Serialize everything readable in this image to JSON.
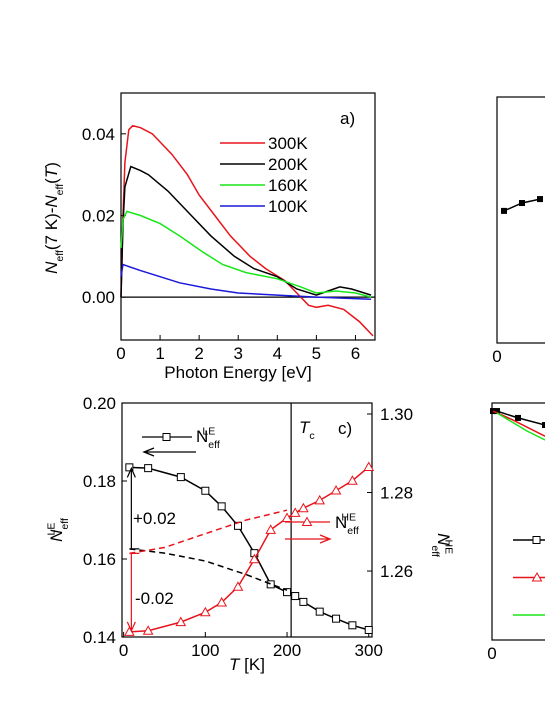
{
  "chart_data": [
    {
      "type": "line",
      "panel_label": "a)",
      "ylabel": [
        "N",
        "eff",
        "(7 K)-",
        "N",
        "eff",
        "(",
        "T",
        ")"
      ],
      "xlabel": "Photon Energy  [eV]",
      "xlim": [
        0,
        6.5
      ],
      "xticks": [
        0,
        1,
        2,
        3,
        4,
        5,
        6
      ],
      "ylim": [
        -0.0105,
        0.05
      ],
      "yticks": [
        {
          "value": 0,
          "label": "0.00"
        },
        {
          "value": 0.02,
          "label": "0.02"
        },
        {
          "value": 0.04,
          "label": "0.04"
        }
      ],
      "hline": 0,
      "series": [
        {
          "name": "300K",
          "color": "#e8141b",
          "x": [
            0,
            0.05,
            0.1,
            0.2,
            0.3,
            0.5,
            0.8,
            1.0,
            1.3,
            1.7,
            2.0,
            2.4,
            2.8,
            3.3,
            3.7,
            4.2,
            4.5,
            4.8,
            5.0,
            5.3,
            5.7,
            6.1,
            6.45
          ],
          "values": [
            0,
            0.02,
            0.033,
            0.041,
            0.042,
            0.0415,
            0.04,
            0.038,
            0.035,
            0.03,
            0.025,
            0.02,
            0.015,
            0.01,
            0.007,
            0.004,
            0.001,
            -0.002,
            -0.0025,
            -0.002,
            -0.003,
            -0.006,
            -0.0095
          ]
        },
        {
          "name": "200K",
          "color": "#000000",
          "x": [
            0,
            0.05,
            0.1,
            0.25,
            0.5,
            0.7,
            1.2,
            1.8,
            2.3,
            2.9,
            3.4,
            4.0,
            4.5,
            5.0,
            5.3,
            5.6,
            5.9,
            6.4
          ],
          "values": [
            0,
            0.018,
            0.027,
            0.032,
            0.031,
            0.03,
            0.026,
            0.02,
            0.015,
            0.01,
            0.007,
            0.005,
            0.002,
            0.0005,
            0.0015,
            0.0025,
            0.002,
            0.0005
          ]
        },
        {
          "name": "160K",
          "color": "#19e619",
          "x": [
            0,
            0.05,
            0.15,
            0.5,
            1.0,
            1.5,
            2.1,
            2.6,
            3.2,
            4.0,
            4.6,
            5.0,
            5.5,
            6.0,
            6.4
          ],
          "values": [
            0.012,
            0.019,
            0.021,
            0.02,
            0.018,
            0.015,
            0.011,
            0.008,
            0.006,
            0.0045,
            0.0025,
            0.001,
            0.0015,
            0.001,
            0
          ]
        },
        {
          "name": "100K",
          "color": "#1a1ad9",
          "x": [
            0,
            0.05,
            0.5,
            1.0,
            1.5,
            2.3,
            3.0,
            4.0,
            5.0,
            6.4
          ],
          "values": [
            0.005,
            0.008,
            0.0065,
            0.005,
            0.0035,
            0.002,
            0.001,
            0.0005,
            0,
            -0.0005
          ]
        }
      ]
    },
    {
      "type": "line",
      "xlim": [
        0,
        1.2
      ],
      "xticks": [
        0
      ],
      "ylim": [
        0,
        1
      ],
      "series": [
        {
          "color": "#000000",
          "marker": "square",
          "x": [
            0.07,
            0.25,
            0.43
          ],
          "values": [
            0.537,
            0.569,
            0.585
          ]
        }
      ]
    },
    {
      "type": "line",
      "panel_label": "c)",
      "xlabel": [
        "T",
        " [K]"
      ],
      "ylabel": [
        "N",
        "eff",
        "LE"
      ],
      "y2label": [
        "N",
        "eff",
        "HE"
      ],
      "xlim": [
        -2,
        304
      ],
      "xticks": [
        0,
        100,
        200,
        300
      ],
      "ylim": [
        0.14,
        0.2
      ],
      "yticks": [
        0.14,
        0.16,
        0.18,
        {
          "value": 0.2,
          "label": "0.20"
        }
      ],
      "y2lim": [
        1.2432,
        1.3028
      ],
      "y2ticks": [
        1.26,
        1.28,
        {
          "value": 1.3,
          "label": "1.30"
        }
      ],
      "vline": 205,
      "tc_label": [
        "T",
        "c"
      ],
      "annotations": [
        {
          "text": "+0.02",
          "color": "#000000"
        },
        {
          "text": "-0.02",
          "color": "#e8141b"
        }
      ],
      "series": [
        {
          "name": [
            "N",
            "eff",
            "LE"
          ],
          "color": "#000000",
          "marker": "square",
          "x": [
            7,
            30,
            70,
            100,
            120,
            140,
            160,
            180,
            200,
            210,
            220,
            240,
            260,
            280,
            300
          ],
          "values": [
            0.1835,
            0.1833,
            0.181,
            0.1775,
            0.1735,
            0.1685,
            0.1615,
            0.1535,
            0.1515,
            0.1505,
            0.149,
            0.1465,
            0.1447,
            0.143,
            0.1418
          ]
        },
        {
          "name": [
            "N",
            "eff",
            "HE"
          ],
          "color": "#e8141b",
          "marker": "triangle",
          "axis": "y2",
          "x": [
            7,
            30,
            70,
            100,
            120,
            140,
            160,
            180,
            200,
            210,
            220,
            240,
            260,
            280,
            300
          ],
          "values": [
            1.2445,
            1.2448,
            1.247,
            1.2495,
            1.252,
            1.256,
            1.263,
            1.2705,
            1.2735,
            1.2748,
            1.276,
            1.278,
            1.2805,
            1.283,
            1.2865
          ]
        },
        {
          "color": "#000000",
          "dash": true,
          "x": [
            7,
            50,
            100,
            150,
            200
          ],
          "values": [
            0.1626,
            0.1615,
            0.1595,
            0.156,
            0.152
          ]
        },
        {
          "color": "#e8141b",
          "dash": true,
          "axis": "y2",
          "x": [
            7,
            50,
            100,
            150,
            200
          ],
          "values": [
            1.2645,
            1.266,
            1.2695,
            1.273,
            1.2755
          ]
        }
      ]
    },
    {
      "type": "line",
      "xlim": [
        0,
        1.3
      ],
      "xticks": [
        0
      ],
      "ylim": [
        0,
        1
      ],
      "legend": true,
      "series": [
        {
          "color": "#000000",
          "marker": "square",
          "x": [
            0.01,
            0.05,
            0.26,
            0.53
          ],
          "values": [
            0.966,
            0.966,
            0.937,
            0.907
          ]
        },
        {
          "color": "#e8141b",
          "x": [
            0.01,
            0.2,
            0.53
          ],
          "values": [
            0.966,
            0.93,
            0.86
          ]
        },
        {
          "color": "#19e619",
          "x": [
            0.05,
            0.2,
            0.35,
            0.53
          ],
          "values": [
            0.958,
            0.92,
            0.882,
            0.844
          ]
        }
      ]
    }
  ]
}
